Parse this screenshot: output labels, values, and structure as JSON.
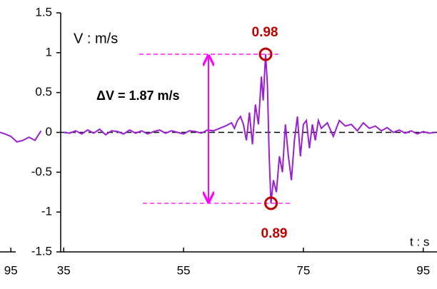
{
  "chart_data": [
    {
      "type": "line",
      "y_label": "V : m/s",
      "x_label": "t : s",
      "annotations": [
        "ΔV = 1.87 m/s",
        "0.98",
        "0.89"
      ],
      "xlim": [
        34.5,
        97.3
      ],
      "ylim": [
        -1.5,
        1.5
      ],
      "xticks": [
        35,
        55,
        75,
        95
      ],
      "yticks": [
        -1.5,
        -1,
        -0.5,
        0,
        0.5,
        1,
        1.5
      ],
      "series": [
        {
          "color": "#9a1fd0",
          "x": [
            35,
            36,
            37,
            38,
            39,
            40,
            41,
            42,
            43,
            44,
            45,
            46,
            47,
            48,
            49,
            50,
            51,
            52,
            53,
            54,
            55,
            56,
            57,
            58,
            59,
            60,
            61,
            62,
            63,
            63.5,
            64,
            64.5,
            65,
            65.5,
            66,
            66.5,
            67,
            67.5,
            68,
            68.3,
            68.7,
            69,
            69.3,
            69.6,
            70,
            70.5,
            71,
            71.5,
            72,
            72.5,
            73,
            73.5,
            74,
            74.5,
            75,
            75.5,
            76,
            76.5,
            77,
            77.5,
            78,
            79,
            80,
            81,
            82,
            83,
            84,
            85,
            86,
            87,
            88,
            89,
            90,
            91,
            92,
            93,
            94,
            95,
            96,
            97
          ],
          "values": [
            0,
            -0.01,
            0.02,
            -0.02,
            0.03,
            -0.01,
            0.04,
            -0.03,
            0.02,
            0.01,
            -0.02,
            0.03,
            -0.01,
            0.02,
            -0.02,
            0.01,
            0.03,
            -0.01,
            0.02,
            0,
            -0.02,
            0.02,
            0.01,
            -0.01,
            0.03,
            0.02,
            0.05,
            0.08,
            0.12,
            0.05,
            0.15,
            0.2,
            0.1,
            -0.1,
            0.25,
            -0.15,
            0.35,
            0.1,
            0.7,
            0.4,
            0.98,
            0.6,
            -0.3,
            -0.89,
            -0.6,
            -0.75,
            -0.3,
            -0.5,
            0.1,
            -0.3,
            -0.6,
            -0.1,
            0.2,
            -0.3,
            0.1,
            0.15,
            -0.2,
            0.1,
            -0.1,
            0.15,
            0.05,
            0.12,
            -0.05,
            0.15,
            0.08,
            0.1,
            0.02,
            0.12,
            0.05,
            0.08,
            0.02,
            0.06,
            0,
            0.03,
            -0.01,
            0.02,
            -0.02,
            0.01,
            -0.01,
            0
          ]
        }
      ]
    },
    {
      "type": "line",
      "xlim": [
        93.2,
        100.3
      ],
      "ylim": [
        -1.5,
        1.5
      ],
      "xticks": [
        95
      ],
      "series": [
        {
          "color": "#9a1fd0",
          "x": [
            93.2,
            94,
            95,
            96,
            97,
            98,
            99,
            100
          ],
          "values": [
            0,
            -0.02,
            -0.05,
            -0.12,
            -0.1,
            -0.06,
            -0.1,
            0.02
          ]
        }
      ]
    }
  ]
}
